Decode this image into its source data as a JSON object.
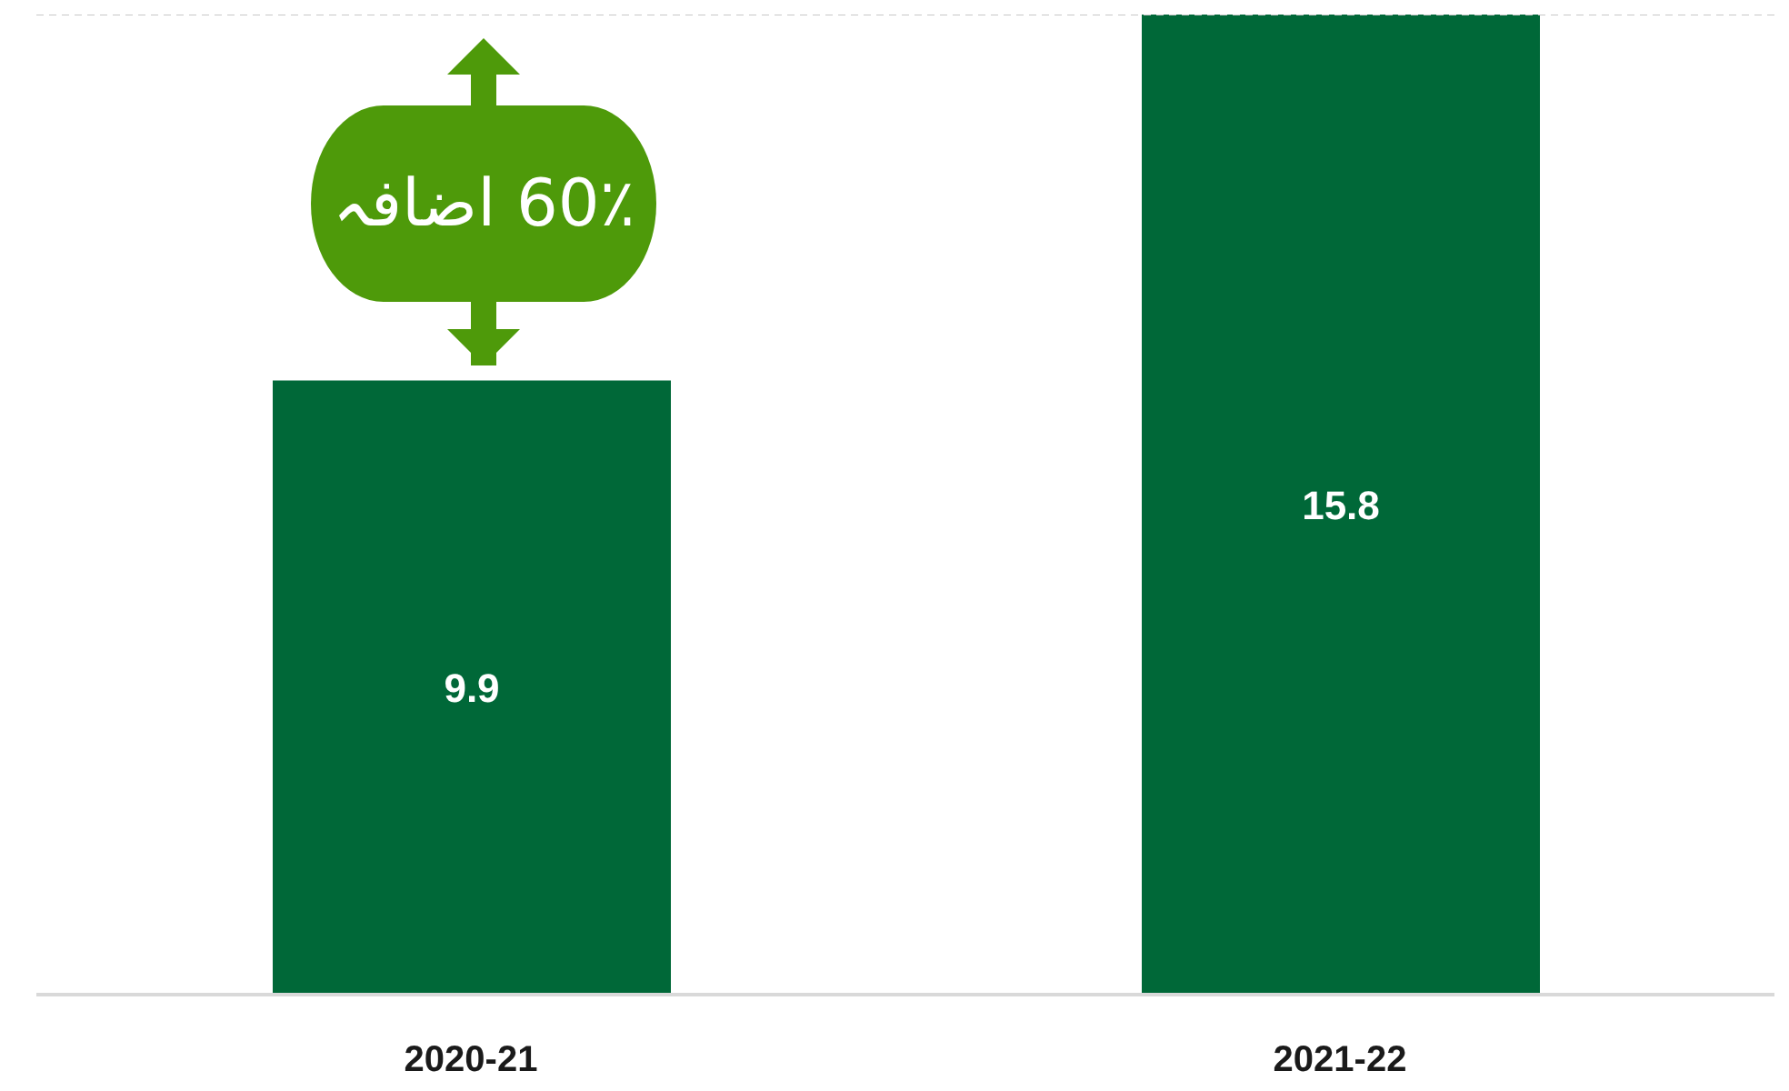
{
  "chart_data": {
    "type": "bar",
    "categories": [
      "2020-21",
      "2021-22"
    ],
    "values": [
      9.9,
      15.8
    ],
    "color": "#006838",
    "data_labels": true,
    "ref_lines": [
      {
        "axis": "y",
        "value": 15.8,
        "color": "#c8c8c8",
        "line_style": "dashed"
      }
    ],
    "annotations": [
      "60٪ اضافہ"
    ]
  }
}
